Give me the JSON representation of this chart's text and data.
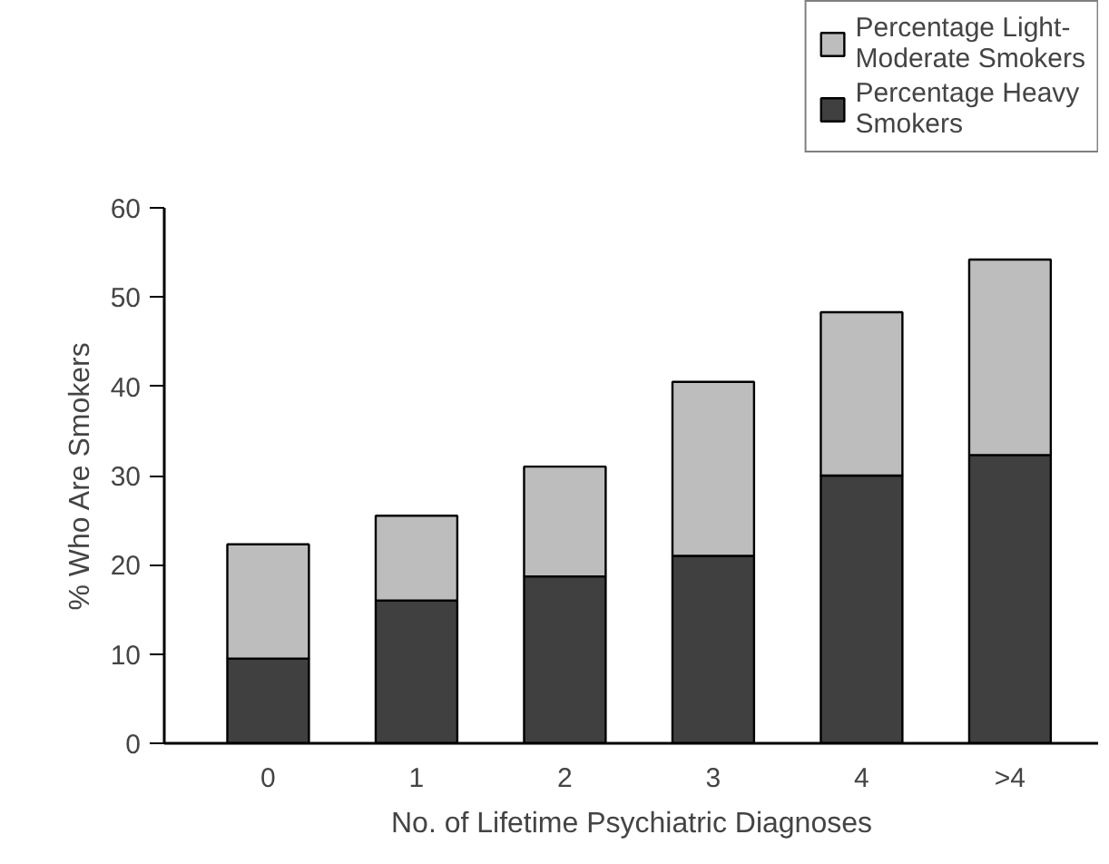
{
  "chart_data": {
    "type": "bar",
    "stacked": true,
    "xlabel": "No. of Lifetime Psychiatric Diagnoses",
    "ylabel": "% Who Are Smokers",
    "categories": [
      "0",
      "1",
      "2",
      "3",
      "4",
      ">4"
    ],
    "series": [
      {
        "name": "Percentage Heavy Smokers",
        "color": "#404040",
        "values": [
          9.5,
          16,
          18.7,
          21,
          30,
          32.3
        ]
      },
      {
        "name": "Percentage Light-Moderate Smokers",
        "color": "#bdbdbd",
        "values": [
          12.8,
          9.5,
          12.3,
          19.5,
          18.3,
          21.9
        ]
      }
    ],
    "ylim": [
      0,
      60
    ],
    "yticks": [
      0,
      10,
      20,
      30,
      40,
      50,
      60
    ],
    "grid": false,
    "legend": "top right"
  }
}
